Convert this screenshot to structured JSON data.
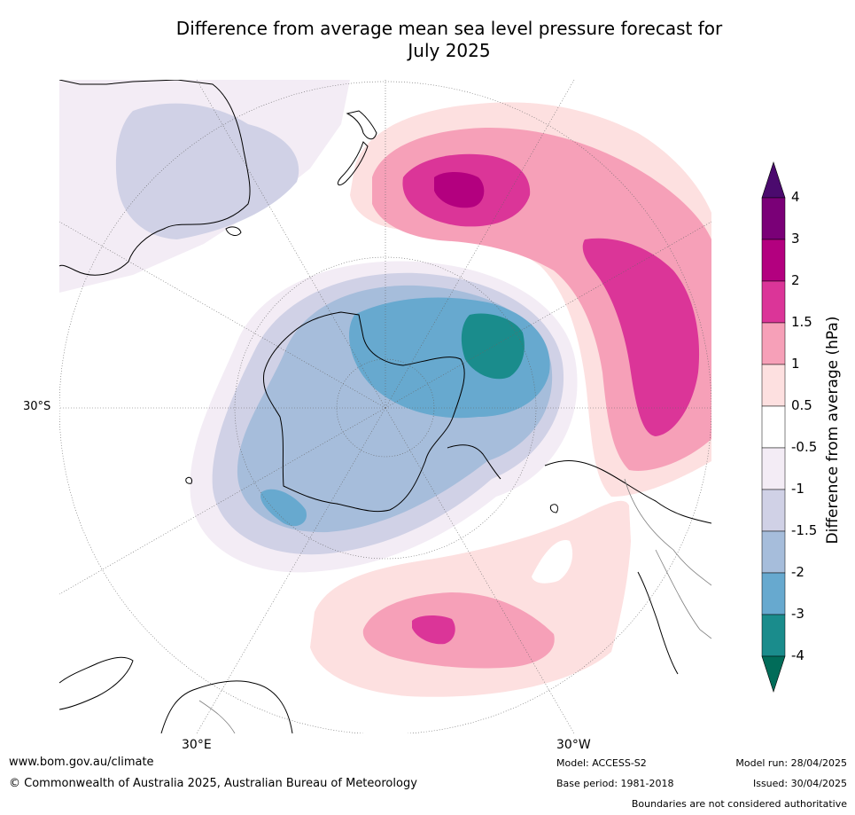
{
  "title_line1": "Difference from average mean sea level pressure forecast for",
  "title_line2": "July 2025",
  "lat_label": "30°S",
  "lon_labels": [
    "30°E",
    "30°W"
  ],
  "colorbar": {
    "title": "Difference from average (hPa)",
    "ticks": [
      "4",
      "3",
      "2",
      "1.5",
      "1",
      "0.5",
      "-0.5",
      "-1",
      "-1.5",
      "-2",
      "-3",
      "-4"
    ],
    "colors": [
      "#4b0a6e",
      "#7a0077",
      "#b3007f",
      "#db3598",
      "#f6a0b8",
      "#fde0e0",
      "#ffffff",
      "#f3ecf5",
      "#d0d1e6",
      "#a6bddb",
      "#67a9cf",
      "#1a8c8c",
      "#016c59"
    ]
  },
  "footer": {
    "url": "www.bom.gov.au/climate",
    "copyright": "© Commonwealth of Australia 2025, Australian Bureau of Meteorology",
    "model": "Model: ACCESS-S2",
    "base_period": "Base period: 1981-2018",
    "model_run": "Model run: 28/04/2025",
    "issued": "Issued: 30/04/2025",
    "disclaimer": "Boundaries are not considered authoritative"
  }
}
